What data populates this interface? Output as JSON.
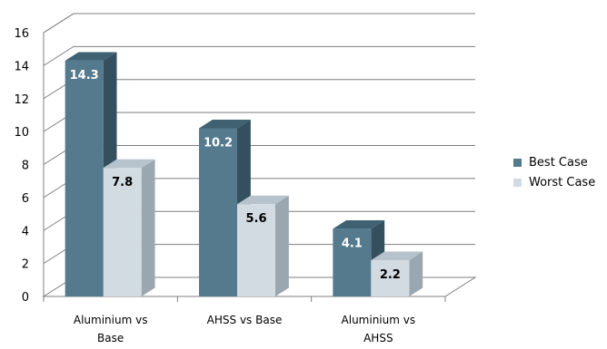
{
  "colors": {
    "best_front": "#557a8e",
    "best_top": "#3f6172",
    "best_side": "#34505f",
    "worst_front": "#d2dbe1",
    "worst_top": "#b7c3cc",
    "worst_side": "#9aa7b0",
    "grid": "#7f7f7f",
    "axis": "#7f7f7f"
  },
  "chart_data": {
    "type": "bar",
    "three_d": true,
    "categories": [
      [
        "Aluminium vs",
        "Base"
      ],
      [
        "AHSS vs Base"
      ],
      [
        "Aluminium vs",
        "AHSS"
      ]
    ],
    "series": [
      {
        "name": "Best Case",
        "values": [
          14.3,
          10.2,
          4.1
        ]
      },
      {
        "name": "Worst Case",
        "values": [
          7.8,
          5.6,
          2.2
        ]
      }
    ],
    "ylim": [
      0,
      16
    ],
    "yticks": [
      0,
      2,
      4,
      6,
      8,
      10,
      12,
      14,
      16
    ],
    "grid": true,
    "legend": "right",
    "data_labels": true
  }
}
